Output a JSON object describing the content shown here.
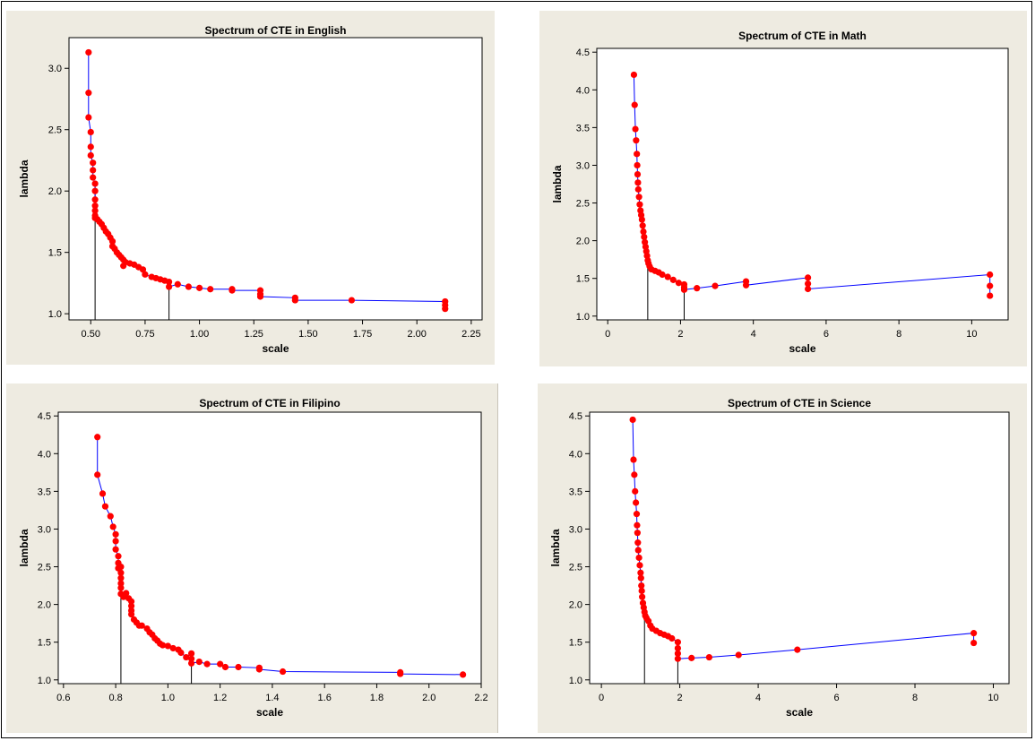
{
  "colors": {
    "panel_bg": "#eeebe1",
    "plot_bg": "#ffffff",
    "line": "#0000ff",
    "marker": "#ff0000",
    "vline": "#000000"
  },
  "chart_data": [
    {
      "type": "line",
      "title": "Spectrum of CTE in English",
      "xlabel": "scale",
      "ylabel": "lambda",
      "xlim": [
        0.4,
        2.3
      ],
      "ylim": [
        0.95,
        3.25
      ],
      "xticks": [
        0.5,
        0.75,
        1.0,
        1.25,
        1.5,
        1.75,
        2.0,
        2.25
      ],
      "xtick_labels": [
        "0.50",
        "0.75",
        "1.00",
        "1.25",
        "1.50",
        "1.75",
        "2.00",
        "2.25"
      ],
      "yticks": [
        1.0,
        1.5,
        2.0,
        2.5,
        3.0
      ],
      "ytick_labels": [
        "1.0",
        "1.5",
        "2.0",
        "2.5",
        "3.0"
      ],
      "markers": "all points shown in red",
      "vlines": [
        0.52,
        0.86
      ],
      "x": [
        0.49,
        0.49,
        0.49,
        0.5,
        0.5,
        0.5,
        0.51,
        0.51,
        0.51,
        0.52,
        0.52,
        0.52,
        0.52,
        0.52,
        0.52,
        0.52,
        0.53,
        0.54,
        0.55,
        0.56,
        0.57,
        0.58,
        0.59,
        0.6,
        0.6,
        0.61,
        0.62,
        0.63,
        0.64,
        0.65,
        0.65,
        0.66,
        0.68,
        0.7,
        0.72,
        0.74,
        0.75,
        0.78,
        0.8,
        0.82,
        0.84,
        0.86,
        0.86,
        0.9,
        0.95,
        1.0,
        1.05,
        1.15,
        1.15,
        1.28,
        1.28,
        1.28,
        1.44,
        1.44,
        1.7,
        2.13,
        2.13,
        2.13
      ],
      "y": [
        3.13,
        2.8,
        2.6,
        2.48,
        2.36,
        2.29,
        2.23,
        2.17,
        2.11,
        2.06,
        2.0,
        1.93,
        1.88,
        1.84,
        1.8,
        1.78,
        1.77,
        1.75,
        1.73,
        1.7,
        1.67,
        1.65,
        1.62,
        1.59,
        1.55,
        1.53,
        1.5,
        1.48,
        1.46,
        1.44,
        1.39,
        1.42,
        1.41,
        1.4,
        1.38,
        1.36,
        1.32,
        1.3,
        1.29,
        1.28,
        1.27,
        1.26,
        1.22,
        1.24,
        1.22,
        1.21,
        1.2,
        1.2,
        1.19,
        1.19,
        1.16,
        1.14,
        1.13,
        1.11,
        1.11,
        1.1,
        1.07,
        1.04
      ]
    },
    {
      "type": "line",
      "title": "Spectrum of CTE in Math",
      "xlabel": "scale",
      "ylabel": "lambda",
      "xlim": [
        -0.3,
        11.0
      ],
      "ylim": [
        0.95,
        4.55
      ],
      "xticks": [
        0,
        2,
        4,
        6,
        8,
        10
      ],
      "xtick_labels": [
        "0",
        "2",
        "4",
        "6",
        "8",
        "10"
      ],
      "yticks": [
        1.0,
        1.5,
        2.0,
        2.5,
        3.0,
        3.5,
        4.0,
        4.5
      ],
      "ytick_labels": [
        "1.0",
        "1.5",
        "2.0",
        "2.5",
        "3.0",
        "3.5",
        "4.0",
        "4.5"
      ],
      "vlines": [
        1.1,
        2.1
      ],
      "x": [
        0.72,
        0.74,
        0.76,
        0.78,
        0.8,
        0.81,
        0.82,
        0.83,
        0.84,
        0.86,
        0.88,
        0.9,
        0.92,
        0.94,
        0.96,
        0.98,
        1.0,
        1.02,
        1.04,
        1.06,
        1.08,
        1.1,
        1.12,
        1.15,
        1.2,
        1.3,
        1.4,
        1.5,
        1.65,
        1.8,
        1.95,
        2.1,
        2.1,
        2.1,
        2.45,
        2.95,
        3.8,
        3.8,
        5.5,
        5.5,
        5.5,
        10.5,
        10.5,
        10.5
      ],
      "y": [
        4.2,
        3.8,
        3.48,
        3.33,
        3.15,
        3.0,
        2.88,
        2.77,
        2.68,
        2.58,
        2.48,
        2.4,
        2.34,
        2.28,
        2.2,
        2.12,
        2.05,
        1.98,
        1.92,
        1.86,
        1.8,
        1.74,
        1.7,
        1.66,
        1.62,
        1.6,
        1.58,
        1.55,
        1.52,
        1.48,
        1.44,
        1.42,
        1.38,
        1.35,
        1.37,
        1.4,
        1.46,
        1.41,
        1.51,
        1.43,
        1.36,
        1.55,
        1.4,
        1.27
      ]
    },
    {
      "type": "line",
      "title": "Spectrum of CTE in Filipino",
      "xlabel": "scale",
      "ylabel": "lambda",
      "xlim": [
        0.58,
        2.2
      ],
      "ylim": [
        0.95,
        4.55
      ],
      "xticks": [
        0.6,
        0.8,
        1.0,
        1.2,
        1.4,
        1.6,
        1.8,
        2.0,
        2.2
      ],
      "xtick_labels": [
        "0.6",
        "0.8",
        "1.0",
        "1.2",
        "1.4",
        "1.6",
        "1.8",
        "2.0",
        "2.2"
      ],
      "yticks": [
        1.0,
        1.5,
        2.0,
        2.5,
        3.0,
        3.5,
        4.0,
        4.5
      ],
      "ytick_labels": [
        "1.0",
        "1.5",
        "2.0",
        "2.5",
        "3.0",
        "3.5",
        "4.0",
        "4.5"
      ],
      "vlines": [
        0.82,
        1.09
      ],
      "x": [
        0.73,
        0.73,
        0.75,
        0.76,
        0.78,
        0.79,
        0.8,
        0.8,
        0.8,
        0.81,
        0.81,
        0.81,
        0.82,
        0.82,
        0.82,
        0.82,
        0.82,
        0.82,
        0.83,
        0.84,
        0.85,
        0.86,
        0.86,
        0.86,
        0.86,
        0.87,
        0.88,
        0.89,
        0.9,
        0.92,
        0.93,
        0.94,
        0.95,
        0.96,
        0.97,
        0.98,
        1.0,
        1.02,
        1.04,
        1.05,
        1.07,
        1.09,
        1.09,
        1.09,
        1.12,
        1.15,
        1.2,
        1.22,
        1.27,
        1.35,
        1.35,
        1.44,
        1.89,
        1.89,
        2.13
      ],
      "y": [
        4.22,
        3.72,
        3.47,
        3.3,
        3.17,
        3.03,
        2.93,
        2.84,
        2.73,
        2.64,
        2.55,
        2.48,
        2.5,
        2.42,
        2.35,
        2.28,
        2.22,
        2.14,
        2.1,
        2.15,
        2.08,
        2.04,
        1.98,
        1.92,
        1.87,
        1.8,
        1.76,
        1.72,
        1.72,
        1.68,
        1.63,
        1.6,
        1.55,
        1.52,
        1.48,
        1.46,
        1.45,
        1.42,
        1.4,
        1.36,
        1.3,
        1.35,
        1.28,
        1.22,
        1.24,
        1.21,
        1.21,
        1.17,
        1.17,
        1.16,
        1.14,
        1.11,
        1.1,
        1.08,
        1.07
      ]
    },
    {
      "type": "line",
      "title": "Spectrum of CTE in Science",
      "xlabel": "scale",
      "ylabel": "lambda",
      "xlim": [
        -0.3,
        10.4
      ],
      "ylim": [
        0.95,
        4.55
      ],
      "xticks": [
        0,
        2,
        4,
        6,
        8,
        10
      ],
      "xtick_labels": [
        "0",
        "2",
        "4",
        "6",
        "8",
        "10"
      ],
      "yticks": [
        1.0,
        1.5,
        2.0,
        2.5,
        3.0,
        3.5,
        4.0,
        4.5
      ],
      "ytick_labels": [
        "1.0",
        "1.5",
        "2.0",
        "2.5",
        "3.0",
        "3.5",
        "4.0",
        "4.5"
      ],
      "vlines": [
        1.1,
        1.95
      ],
      "x": [
        0.8,
        0.82,
        0.84,
        0.86,
        0.88,
        0.9,
        0.91,
        0.92,
        0.93,
        0.94,
        0.96,
        0.98,
        1.0,
        1.01,
        1.02,
        1.03,
        1.04,
        1.06,
        1.08,
        1.1,
        1.12,
        1.15,
        1.2,
        1.25,
        1.3,
        1.4,
        1.5,
        1.6,
        1.7,
        1.8,
        1.95,
        1.95,
        1.95,
        1.95,
        2.3,
        2.75,
        3.5,
        5.0,
        9.5,
        9.5
      ],
      "y": [
        4.45,
        3.92,
        3.72,
        3.5,
        3.35,
        3.2,
        3.05,
        2.95,
        2.82,
        2.72,
        2.62,
        2.52,
        2.42,
        2.35,
        2.25,
        2.18,
        2.1,
        2.02,
        1.96,
        1.9,
        1.85,
        1.82,
        1.78,
        1.72,
        1.68,
        1.65,
        1.62,
        1.6,
        1.58,
        1.55,
        1.5,
        1.42,
        1.35,
        1.28,
        1.29,
        1.3,
        1.33,
        1.4,
        1.62,
        1.49
      ]
    }
  ]
}
